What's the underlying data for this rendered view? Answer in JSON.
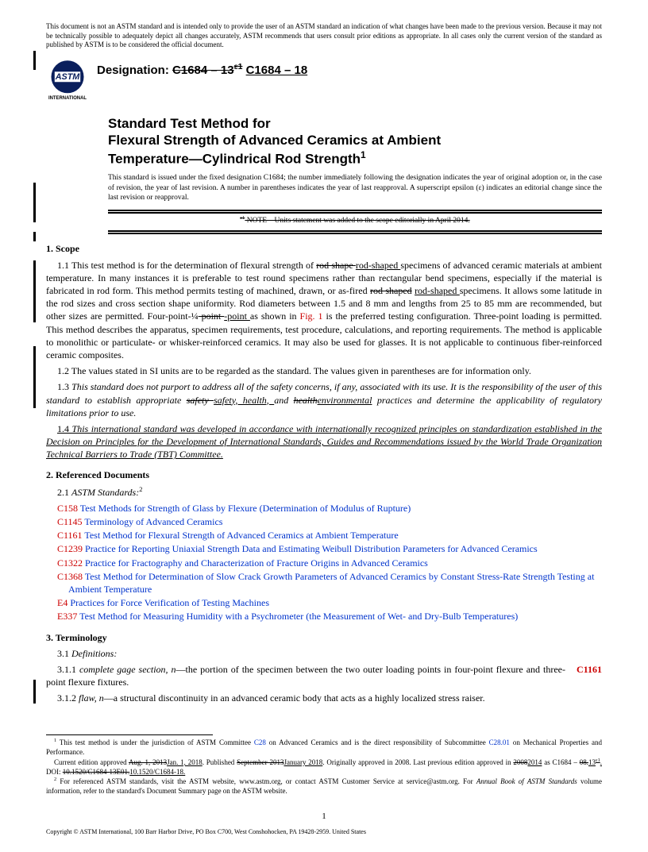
{
  "disclaimer": "This document is not an ASTM standard and is intended only to provide the user of an ASTM standard an indication of what changes have been made to the previous version. Because it may not be technically possible to adequately depict all changes accurately, ASTM recommends that users consult prior editions as appropriate. In all cases only the current version of the standard as published by ASTM is to be considered the official document.",
  "logo_text_top": "ASTM",
  "logo_text_bottom": "INTERNATIONAL",
  "designation_label": "Designation:",
  "designation_old": "C1684 – 13",
  "designation_old_sup": "ε1",
  "designation_new": "C1684 – 18",
  "title_line1": "Standard Test Method for",
  "title_line2": "Flexural Strength of Advanced Ceramics at Ambient",
  "title_line3": "Temperature—Cylindrical Rod Strength",
  "title_sup": "1",
  "issued_note": "This standard is issued under the fixed designation C1684; the number immediately following the designation indicates the year of original adoption or, in the case of revision, the year of last revision. A number in parentheses indicates the year of last reapproval. A superscript epsilon (ε) indicates an editorial change since the last revision or reapproval.",
  "eps_note_sup": "ε1",
  "eps_note": " NOTE—Units statement was added to the scope editorially in April 2014.",
  "sec1_head": "1. Scope",
  "sec1_1a": "1.1 This test method is for the determination of flexural strength of ",
  "sec1_1_strike1": "rod shape ",
  "sec1_1_uline1": "rod-shaped ",
  "sec1_1b": "specimens of advanced ceramic materials at ambient temperature. In many instances it is preferable to test round specimens rather than rectangular bend specimens, especially if the material is fabricated in rod form. This method permits testing of machined, drawn, or as-fired ",
  "sec1_1_strike2": "rod shaped",
  "sec1_1_uline2": "rod-shaped ",
  "sec1_1c": "specimens. It allows some latitude in the rod sizes and cross section shape uniformity. Rod diameters between 1.5 and 8 mm and lengths from 25 to 85 mm are recommended, but other sizes are permitted. Four-point-¼",
  "sec1_1_strike3": " point ",
  "sec1_1_uline3": "-point ",
  "sec1_1d": "as shown in ",
  "sec1_1_fig": "Fig. 1",
  "sec1_1e": " is the preferred testing configuration. Three-point loading is permitted. This method describes the apparatus, specimen requirements, test procedure, calculations, and reporting requirements. The method is applicable to monolithic or particulate- or whisker-reinforced ceramics. It may also be used for glasses. It is not applicable to continuous fiber-reinforced ceramic composites.",
  "sec1_2": "1.2 The values stated in SI units are to be regarded as the standard. The values given in parentheses are for information only.",
  "sec1_3a": "1.3 ",
  "sec1_3b": "This standard does not purport to address all of the safety concerns, if any, associated with its use. It is the responsibility of the user of this standard to establish appropriate ",
  "sec1_3_strike1": "safety ",
  "sec1_3_uline1": "safety, health, ",
  "sec1_3c": "and ",
  "sec1_3_strike2": "health",
  "sec1_3_uline2": "environmental",
  "sec1_3d": " practices and determine the applicability of regulatory limitations prior to use.",
  "sec1_4a": "1.4 ",
  "sec1_4b": "This international standard was developed in accordance with internationally recognized principles on standardization established in the Decision on Principles for the Development of International Standards, Guides and Recommendations issued by the World Trade Organization Technical Barriers to Trade (TBT) Committee.",
  "sec2_head": "2. Referenced Documents",
  "sec2_1": "2.1 ",
  "sec2_1b": "ASTM Standards:",
  "sec2_1_sup": "2",
  "refs": [
    {
      "code": "C158",
      "title": "Test Methods for Strength of Glass by Flexure (Determination of Modulus of Rupture)"
    },
    {
      "code": "C1145",
      "title": "Terminology of Advanced Ceramics"
    },
    {
      "code": "C1161",
      "title": "Test Method for Flexural Strength of Advanced Ceramics at Ambient Temperature"
    },
    {
      "code": "C1239",
      "title": "Practice for Reporting Uniaxial Strength Data and Estimating Weibull Distribution Parameters for Advanced Ceramics"
    },
    {
      "code": "C1322",
      "title": "Practice for Fractography and Characterization of Fracture Origins in Advanced Ceramics"
    },
    {
      "code": "C1368",
      "title": "Test Method for Determination of Slow Crack Growth Parameters of Advanced Ceramics by Constant Stress-Rate Strength Testing at Ambient Temperature"
    },
    {
      "code": "E4",
      "title": "Practices for Force Verification of Testing Machines"
    },
    {
      "code": "E337",
      "title": "Test Method for Measuring Humidity with a Psychrometer (the Measurement of Wet- and Dry-Bulb Temperatures)"
    }
  ],
  "sec3_head": "3. Terminology",
  "sec3_1": "3.1 ",
  "sec3_1b": "Definitions:",
  "sec3_1_1a": "3.1.1 ",
  "sec3_1_1_term": "complete gage section, n",
  "sec3_1_1b": "—the portion of the specimen between the two outer loading points in four-point flexure and three-point flexure fixtures.",
  "sec3_1_1_ref": "C1161",
  "sec3_1_2a": "3.1.2 ",
  "sec3_1_2_term": "flaw, n",
  "sec3_1_2b": "—a structural discontinuity in an advanced ceramic body that acts as a highly localized stress raiser.",
  "fn1a": " This test method is under the jurisdiction of ASTM Committee ",
  "fn1_link1": "C28",
  "fn1b": " on Advanced Ceramics and is the direct responsibility of Subcommittee ",
  "fn1_link2": "C28.01",
  "fn1c": " on Mechanical Properties and Performance.",
  "fn1d": "Current edition approved ",
  "fn1_strike1": "Aug. 1, 2013",
  "fn1_uline1": "Jan. 1, 2018",
  "fn1e": ". Published ",
  "fn1_strike2": "September 2013",
  "fn1_uline2": "January 2018",
  "fn1f": ". Originally approved in 2008. Last previous edition approved in ",
  "fn1_strike3": "2008",
  "fn1_uline3": "2014",
  "fn1g": " as C1684 – ",
  "fn1_strike4": "08.",
  "fn1_uline4": "13",
  "fn1_uline4_sup": "ε1",
  "fn1_uline4b": ".",
  "fn1h": " DOI: ",
  "fn1_strike5": "10.1520/C1684-13E01.",
  "fn1_uline5": "10.1520/C1684-18.",
  "fn2a": " For referenced ASTM standards, visit the ASTM website, www.astm.org, or contact ASTM Customer Service at service@astm.org. For ",
  "fn2b": "Annual Book of ASTM Standards",
  "fn2c": " volume information, refer to the standard's Document Summary page on the ASTM website.",
  "copyright": "Copyright © ASTM International, 100 Barr Harbor Drive, PO Box C700, West Conshohocken, PA 19428-2959. United States",
  "pagenum": "1",
  "colors": {
    "ref_code": "#cc0000",
    "ref_title": "#0033cc",
    "text": "#000000"
  }
}
